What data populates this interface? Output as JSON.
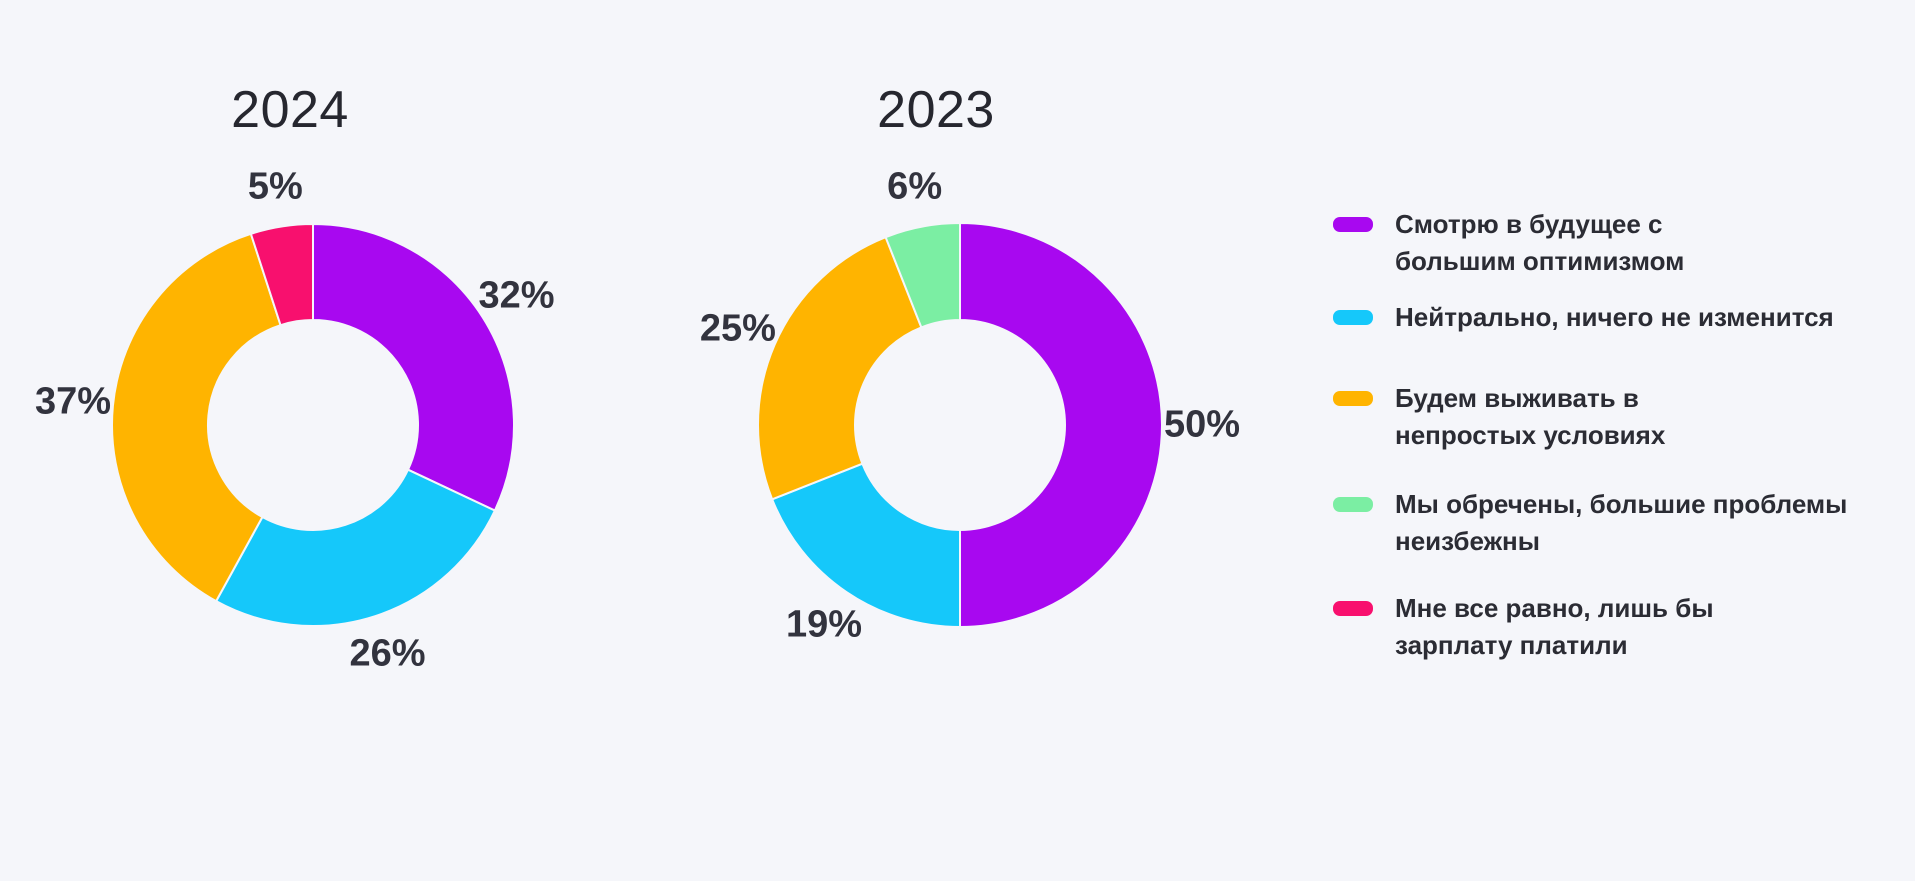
{
  "page": {
    "background_color": "#F5F6FA",
    "text_color": "#32333E"
  },
  "chart_data": [
    {
      "type": "pie",
      "subtype": "donut",
      "title": "2024",
      "categories": [
        "Смотрю в будущее с большим оптимизмом",
        "Нейтрально, ничего не изменится",
        "Будем выживать в непростых условиях",
        "Мне все равно, лишь бы зарплату платили"
      ],
      "values": [
        32,
        26,
        37,
        5
      ],
      "value_labels": [
        "32%",
        "26%",
        "37%",
        "5%"
      ],
      "colors": [
        "#A808F0",
        "#15C8FA",
        "#FFB400",
        "#F8106E"
      ],
      "start_angle_deg": 0,
      "direction": "clockwise",
      "inner_radius_ratio": 0.52,
      "legend_position": "right"
    },
    {
      "type": "pie",
      "subtype": "donut",
      "title": "2023",
      "categories": [
        "Смотрю в будущее с большим оптимизмом",
        "Нейтрально, ничего не изменится",
        "Будем выживать в непростых условиях",
        "Мы обречены, большие проблемы неизбежны"
      ],
      "values": [
        50,
        19,
        25,
        6
      ],
      "value_labels": [
        "50%",
        "19%",
        "25%",
        "6%"
      ],
      "colors": [
        "#A808F0",
        "#15C8FA",
        "#FFB400",
        "#7BEEA3"
      ],
      "start_angle_deg": 0,
      "direction": "clockwise",
      "inner_radius_ratio": 0.52,
      "legend_position": "right"
    }
  ],
  "legend": {
    "items": [
      {
        "label": "Смотрю в будущее с\nбольшим оптимизмом",
        "color": "#A808F0"
      },
      {
        "label": "Нейтрально, ничего не изменится",
        "color": "#15C8FA"
      },
      {
        "label": "Будем выживать в\nнепростых условиях",
        "color": "#FFB400"
      },
      {
        "label": "Мы обречены, большие проблемы\nнеизбежны",
        "color": "#7BEEA3"
      },
      {
        "label": "Мне все равно, лишь бы\nзарплату платили",
        "color": "#F8106E"
      }
    ]
  }
}
